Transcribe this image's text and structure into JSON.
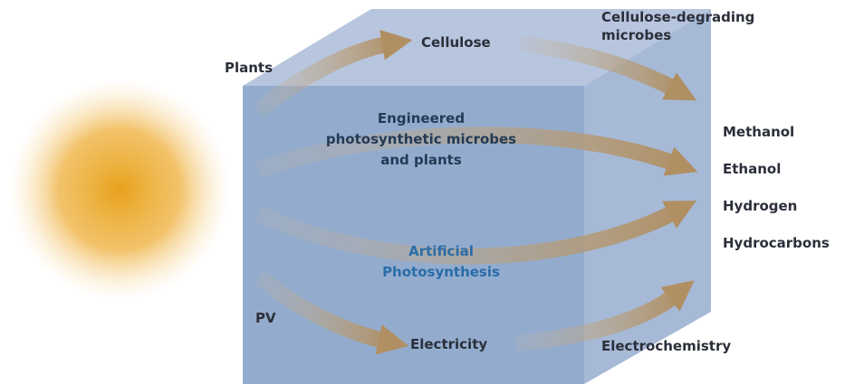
{
  "labels": {
    "plants": "Plants",
    "cellulose": "Cellulose",
    "cellulose_degrading": [
      "Cellulose-degrading",
      "microbes"
    ],
    "engineered": [
      "Engineered",
      "photosynthetic microbes",
      "and plants"
    ],
    "artificial": [
      "Artificial",
      "Photosynthesis"
    ],
    "pv": "PV",
    "electricity": "Electricity",
    "electrochemistry": "Electrochemistry"
  },
  "products": [
    "Methanol",
    "Ethanol",
    "Hydrogen",
    "Hydrocarbons"
  ]
}
